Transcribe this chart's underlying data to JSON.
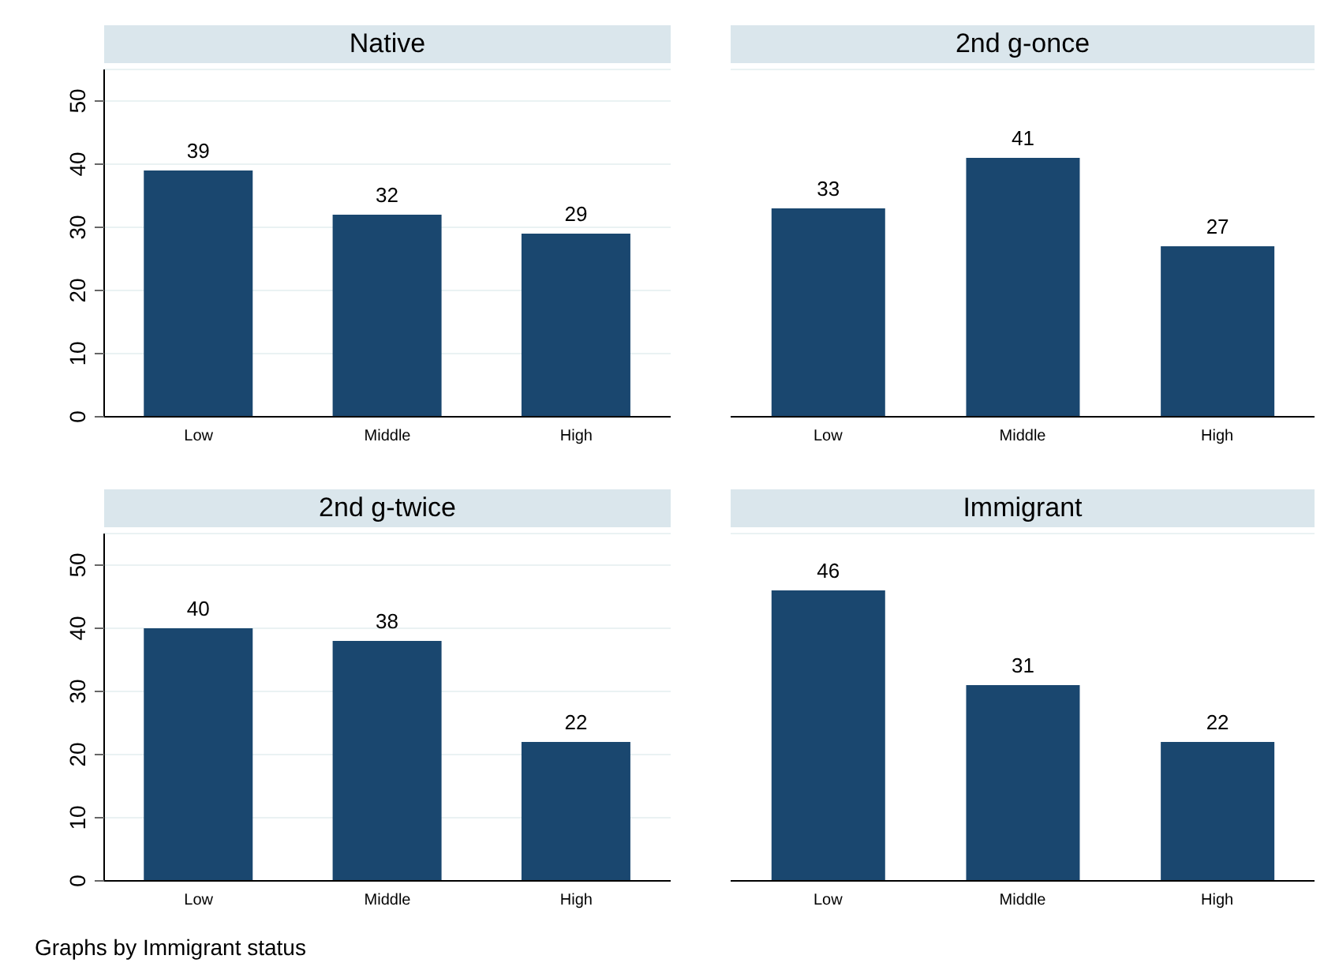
{
  "chart_data": [
    {
      "type": "bar",
      "title": "Native",
      "categories": [
        "Low",
        "Middle",
        "High"
      ],
      "values": [
        39,
        32,
        29
      ],
      "color": "#1a476f",
      "ylim": [
        0,
        55
      ],
      "yticks": [
        0,
        10,
        20,
        30,
        40,
        50
      ],
      "grid": "y",
      "data_labels": true
    },
    {
      "type": "bar",
      "title": "2nd g-once",
      "categories": [
        "Low",
        "Middle",
        "High"
      ],
      "values": [
        33,
        41,
        27
      ],
      "color": "#1a476f",
      "ylim": [
        0,
        55
      ],
      "yticks": [
        0,
        10,
        20,
        30,
        40,
        50
      ],
      "grid": "y",
      "data_labels": true,
      "tick_labels": "x"
    },
    {
      "type": "bar",
      "title": "2nd g-twice",
      "categories": [
        "Low",
        "Middle",
        "High"
      ],
      "values": [
        40,
        38,
        22
      ],
      "color": "#1a476f",
      "ylim": [
        0,
        55
      ],
      "yticks": [
        0,
        10,
        20,
        30,
        40,
        50
      ],
      "grid": "y",
      "data_labels": true,
      "annotations": [
        "Graphs by Immigrant status"
      ]
    },
    {
      "type": "bar",
      "title": "Immigrant",
      "categories": [
        "Low",
        "Middle",
        "High"
      ],
      "values": [
        46,
        31,
        22
      ],
      "color": "#1a476f",
      "ylim": [
        0,
        55
      ],
      "yticks": [
        0,
        10,
        20,
        30,
        40,
        50
      ],
      "grid": "y",
      "data_labels": true,
      "tick_labels": "x"
    }
  ]
}
